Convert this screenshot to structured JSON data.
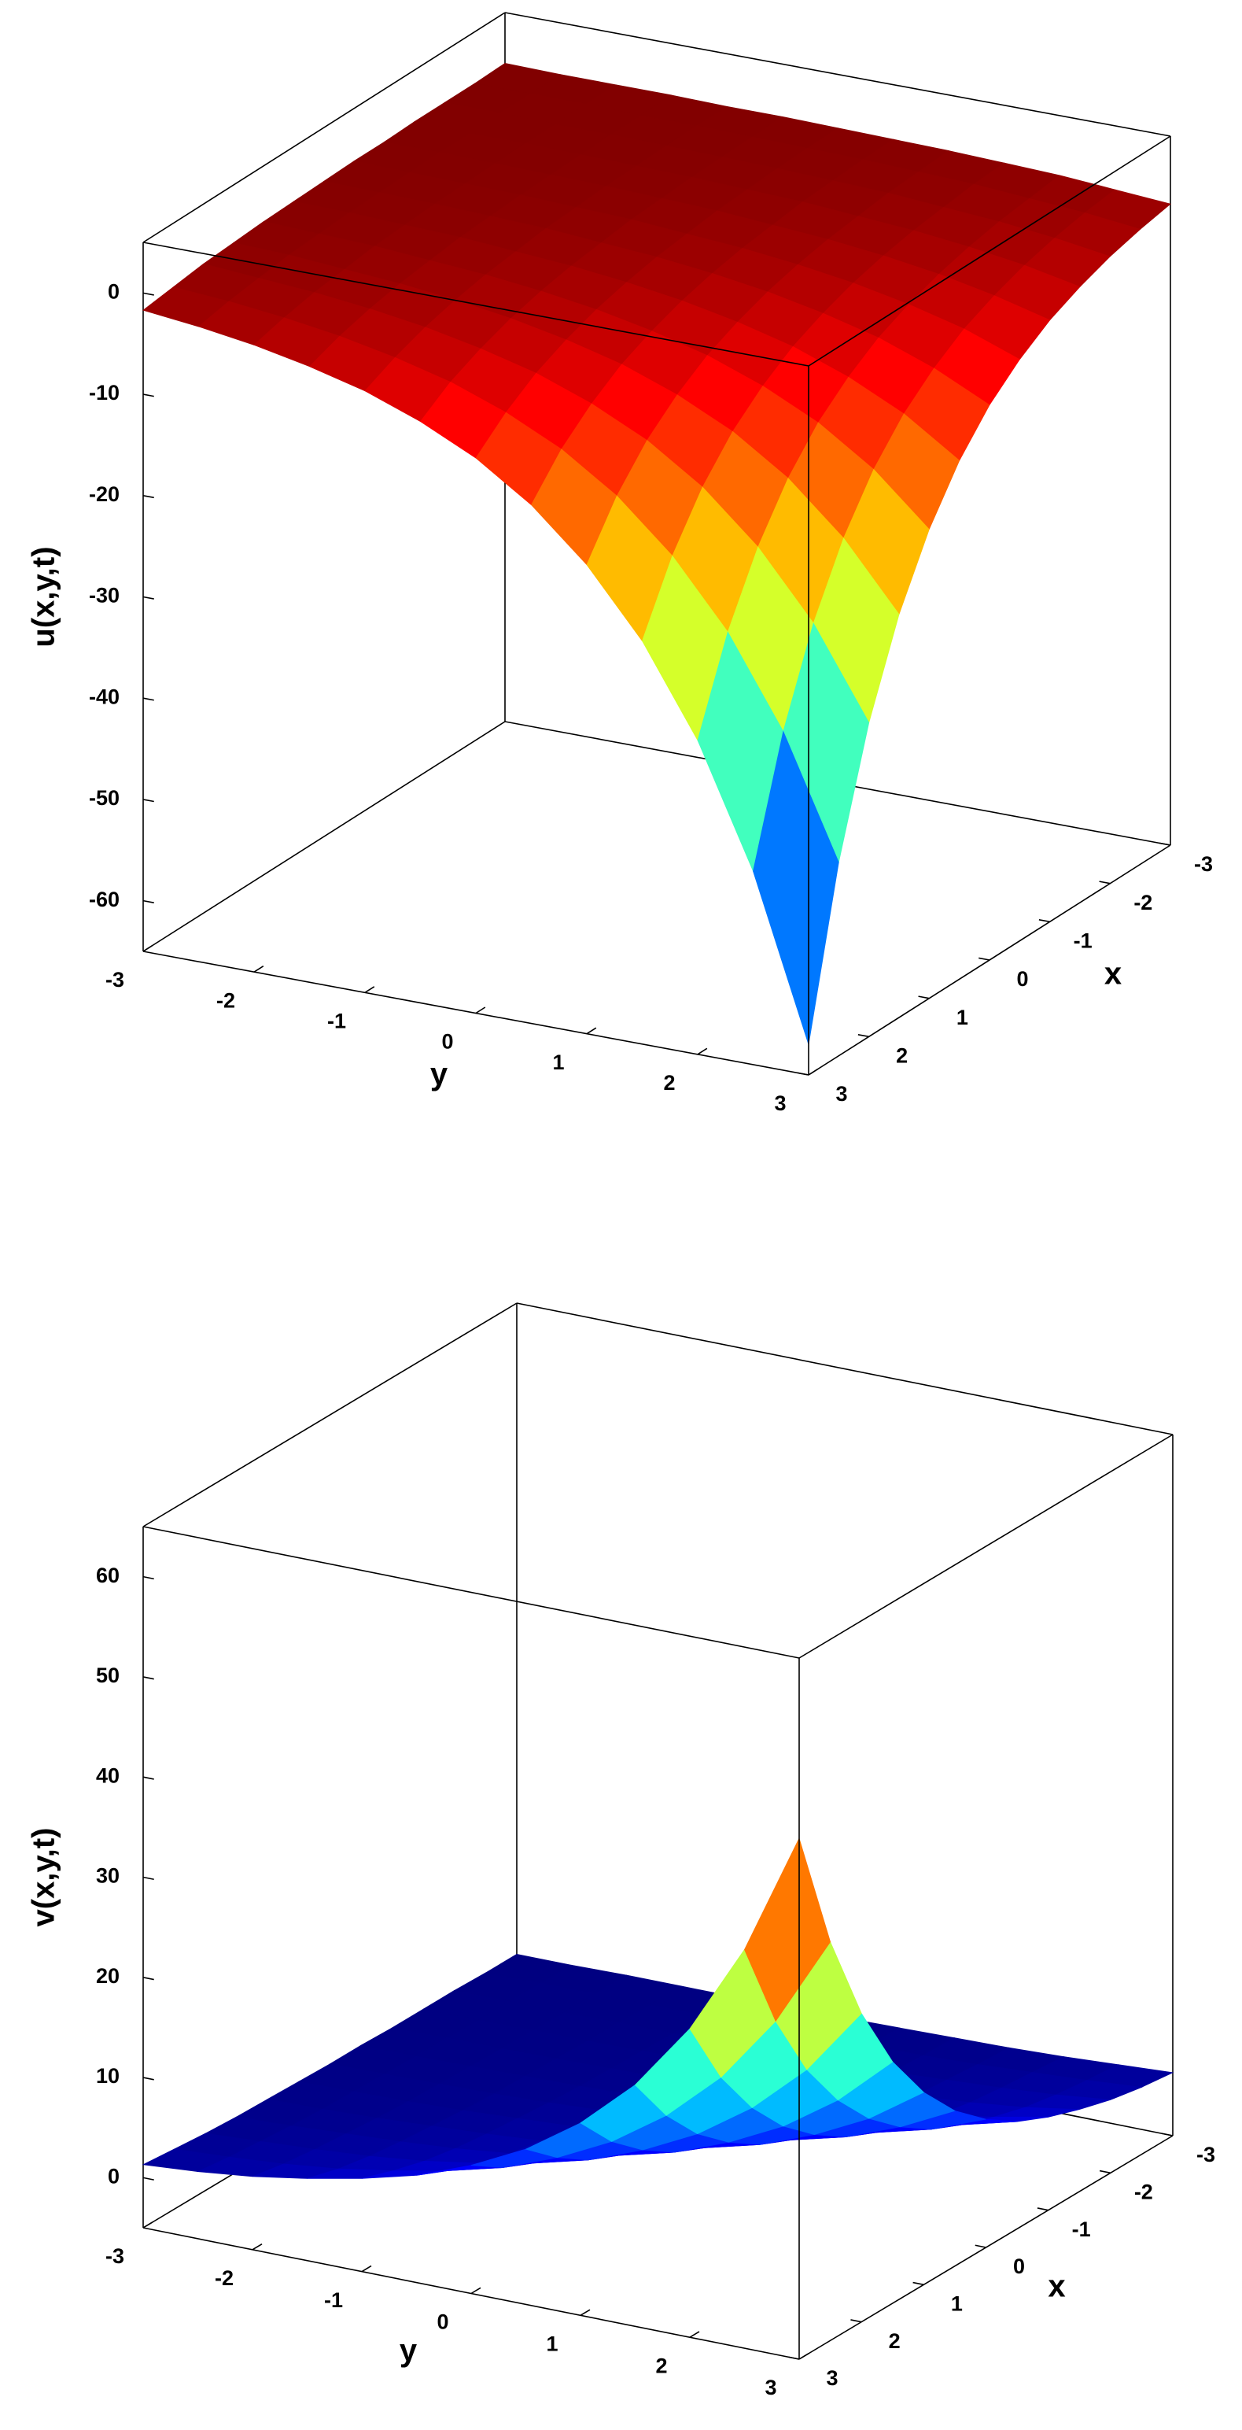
{
  "chart_data": [
    {
      "type": "surface",
      "zlabel": "u(x,y,t)",
      "xlabel": "x",
      "ylabel": "y",
      "colormap": "jet",
      "box": true,
      "x": [
        -3,
        -2.5,
        -2,
        -1.5,
        -1,
        -0.5,
        0,
        0.5,
        1,
        1.5,
        2,
        2.5,
        3
      ],
      "y": [
        -3,
        -2.5,
        -2,
        -1.5,
        -1,
        -0.5,
        0,
        0.5,
        1,
        1.5,
        2,
        2.5,
        3
      ],
      "z": [
        [
          0,
          -0.1,
          -0.1,
          -0.1,
          -0.2,
          -0.2,
          -0.3,
          -0.4,
          -0.5,
          -0.7,
          -0.9,
          -1.3,
          -1.7
        ],
        [
          -0.1,
          -0.1,
          -0.1,
          -0.2,
          -0.2,
          -0.3,
          -0.4,
          -0.5,
          -0.7,
          -0.9,
          -1.3,
          -1.7,
          -2.3
        ],
        [
          -0.1,
          -0.1,
          -0.2,
          -0.2,
          -0.3,
          -0.4,
          -0.5,
          -0.7,
          -0.9,
          -1.3,
          -1.7,
          -2.3,
          -3.1
        ],
        [
          -0.1,
          -0.2,
          -0.2,
          -0.3,
          -0.4,
          -0.5,
          -0.7,
          -0.9,
          -1.3,
          -1.7,
          -2.3,
          -3.1,
          -4.2
        ],
        [
          -0.2,
          -0.2,
          -0.3,
          -0.4,
          -0.5,
          -0.7,
          -0.9,
          -1.3,
          -1.7,
          -2.3,
          -3.1,
          -4.2,
          -5.6
        ],
        [
          -0.2,
          -0.3,
          -0.4,
          -0.5,
          -0.7,
          -0.9,
          -1.3,
          -1.7,
          -2.3,
          -3.1,
          -4.2,
          -5.6,
          -7.6
        ],
        [
          -0.3,
          -0.4,
          -0.5,
          -0.7,
          -0.9,
          -1.3,
          -1.7,
          -2.3,
          -3.1,
          -4.2,
          -5.6,
          -7.6,
          -10.2
        ],
        [
          -0.4,
          -0.5,
          -0.7,
          -0.9,
          -1.3,
          -1.7,
          -2.3,
          -3.1,
          -4.2,
          -5.6,
          -7.6,
          -10.2,
          -13.8
        ],
        [
          -0.5,
          -0.7,
          -0.9,
          -1.3,
          -1.7,
          -2.3,
          -3.1,
          -4.2,
          -5.6,
          -7.6,
          -10.2,
          -13.8,
          -18.7
        ],
        [
          -0.7,
          -0.9,
          -1.3,
          -1.7,
          -2.3,
          -3.1,
          -4.2,
          -5.6,
          -7.6,
          -10.2,
          -13.8,
          -18.7,
          -25.2
        ],
        [
          -0.9,
          -1.3,
          -1.7,
          -2.3,
          -3.1,
          -4.2,
          -5.6,
          -7.6,
          -10.2,
          -13.8,
          -18.7,
          -25.2,
          -34.0
        ],
        [
          -1.3,
          -1.7,
          -2.3,
          -3.1,
          -4.2,
          -5.6,
          -7.6,
          -10.2,
          -13.8,
          -18.7,
          -25.2,
          -34.0,
          -45.9
        ],
        [
          -1.7,
          -2.3,
          -3.1,
          -4.2,
          -5.6,
          -7.6,
          -10.2,
          -13.8,
          -18.7,
          -25.2,
          -34.0,
          -45.9,
          -62
        ]
      ],
      "xlim": [
        -3,
        3
      ],
      "ylim": [
        -3,
        3
      ],
      "zlim": [
        -65,
        5
      ],
      "xticks": [
        -3,
        -2,
        -1,
        0,
        1,
        2,
        3
      ],
      "yticks": [
        -3,
        -2,
        -1,
        0,
        1,
        2,
        3
      ],
      "zticks": [
        -60,
        -50,
        -40,
        -30,
        -20,
        -10,
        0
      ]
    },
    {
      "type": "surface",
      "zlabel": "v(x,y,t)",
      "xlabel": "x",
      "ylabel": "y",
      "colormap": "jet",
      "box": true,
      "x": [
        -3,
        -2.5,
        -2,
        -1.5,
        -1,
        -0.5,
        0,
        0.5,
        1,
        1.5,
        2,
        2.5,
        3
      ],
      "y": [
        -3,
        -2.5,
        -2,
        -1.5,
        -1,
        -0.5,
        0,
        0.5,
        1,
        1.5,
        2,
        2.5,
        3
      ],
      "z": [
        [
          0,
          0,
          0.1,
          0.1,
          0.1,
          0.2,
          0.2,
          0.3,
          0.4,
          0.5,
          0.7,
          1.0,
          1.3
        ],
        [
          0,
          0.1,
          0.1,
          0.1,
          0.2,
          0.2,
          0.3,
          0.4,
          0.5,
          0.7,
          1.0,
          1.3,
          1.7
        ],
        [
          0.1,
          0.1,
          0.1,
          0.2,
          0.2,
          0.3,
          0.4,
          0.5,
          0.7,
          1.0,
          1.3,
          1.7,
          2.3
        ],
        [
          0.1,
          0.1,
          0.2,
          0.2,
          0.3,
          0.4,
          0.5,
          0.7,
          1.0,
          1.3,
          1.7,
          2.3,
          3.2
        ],
        [
          0.1,
          0.2,
          0.2,
          0.3,
          0.4,
          0.5,
          0.7,
          1.0,
          1.3,
          1.7,
          2.3,
          3.2,
          4.3
        ],
        [
          0.2,
          0.2,
          0.3,
          0.4,
          0.5,
          0.7,
          1.0,
          1.3,
          1.7,
          2.3,
          3.2,
          4.3,
          5.7
        ],
        [
          0.2,
          0.3,
          0.4,
          0.5,
          0.7,
          1.0,
          1.3,
          1.7,
          2.3,
          3.2,
          4.3,
          5.7,
          7.8
        ],
        [
          0.3,
          0.4,
          0.5,
          0.7,
          1.0,
          1.3,
          1.7,
          2.3,
          3.2,
          4.3,
          5.7,
          7.8,
          10.5
        ],
        [
          0.4,
          0.5,
          0.7,
          1.0,
          1.3,
          1.7,
          2.3,
          3.2,
          4.3,
          5.7,
          7.8,
          10.5,
          14.2
        ],
        [
          0.5,
          0.7,
          1.0,
          1.3,
          1.7,
          2.3,
          3.2,
          4.3,
          5.7,
          7.8,
          10.5,
          14.2,
          19.1
        ],
        [
          0.7,
          1.0,
          1.3,
          1.7,
          2.3,
          3.2,
          4.3,
          5.7,
          7.8,
          10.5,
          14.2,
          19.1,
          25.8
        ],
        [
          1.0,
          1.3,
          1.7,
          2.3,
          3.2,
          4.3,
          5.7,
          7.8,
          10.5,
          14.2,
          19.1,
          25.8,
          34.8
        ],
        [
          1.3,
          1.7,
          2.3,
          3.2,
          4.3,
          5.7,
          7.8,
          10.5,
          14.2,
          19.1,
          25.8,
          34.8,
          47
        ]
      ],
      "xlim": [
        -3,
        3
      ],
      "ylim": [
        -3,
        3
      ],
      "zlim": [
        -5,
        65
      ],
      "xticks": [
        -3,
        -2,
        -1,
        0,
        1,
        2,
        3
      ],
      "yticks": [
        -3,
        -2,
        -1,
        0,
        1,
        2,
        3
      ],
      "zticks": [
        0,
        10,
        20,
        30,
        40,
        50,
        60
      ]
    }
  ]
}
